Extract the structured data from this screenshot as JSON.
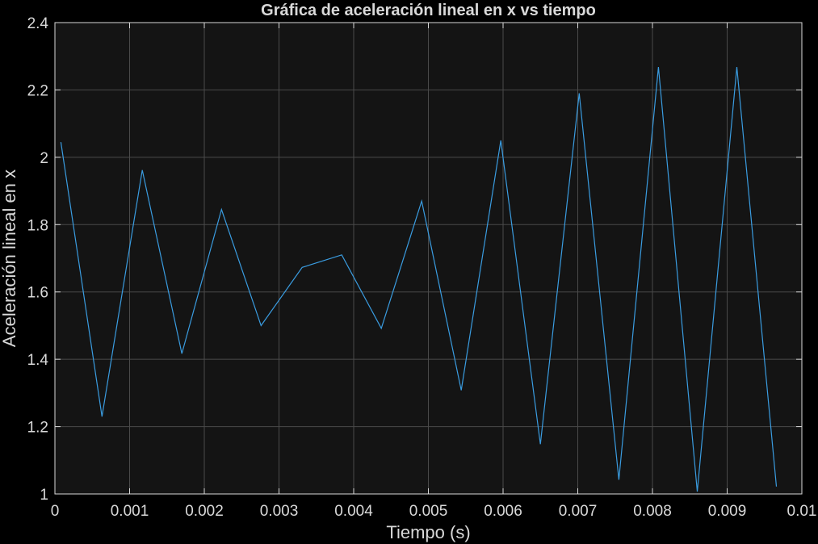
{
  "figure": {
    "background": "#000000"
  },
  "chart_data": {
    "type": "line",
    "title": "Gráfica de aceleración lineal en x vs tiempo",
    "xlabel": "Tiempo (s)",
    "ylabel": "Aceleración lineal en x",
    "xlim": [
      0,
      0.01
    ],
    "ylim": [
      1,
      2.4
    ],
    "xticks": [
      0,
      0.001,
      0.002,
      0.003,
      0.004,
      0.005,
      0.006,
      0.007,
      0.008,
      0.009,
      0.01
    ],
    "xtick_labels": [
      "0",
      "0.001",
      "0.002",
      "0.003",
      "0.004",
      "0.005",
      "0.006",
      "0.007",
      "0.008",
      "0.009",
      "0.01"
    ],
    "yticks": [
      1,
      1.2,
      1.4,
      1.6,
      1.8,
      2,
      2.2,
      2.4
    ],
    "ytick_labels": [
      "1",
      "1.2",
      "1.4",
      "1.6",
      "1.8",
      "2",
      "2.2",
      "2.4"
    ],
    "grid": true,
    "colors": {
      "axes_background": "#141414",
      "grid": "#4a4a4a",
      "axis": "#d9d9d9",
      "text": "#d9d9d9",
      "line": "#3a9ce0"
    },
    "series": [
      {
        "x": [
          8e-05,
          0.00063,
          0.00117,
          0.0017,
          0.00223,
          0.00276,
          0.00331,
          0.00384,
          0.00437,
          0.00491,
          0.00544,
          0.00597,
          0.0065,
          0.00702,
          0.00755,
          0.00808,
          0.0086,
          0.00913,
          0.00966
        ],
        "y": [
          2.045,
          1.23,
          1.962,
          1.417,
          1.845,
          1.5,
          1.673,
          1.71,
          1.492,
          1.87,
          1.308,
          2.05,
          1.148,
          2.19,
          1.042,
          2.268,
          1.007,
          2.268,
          1.022
        ]
      }
    ]
  }
}
